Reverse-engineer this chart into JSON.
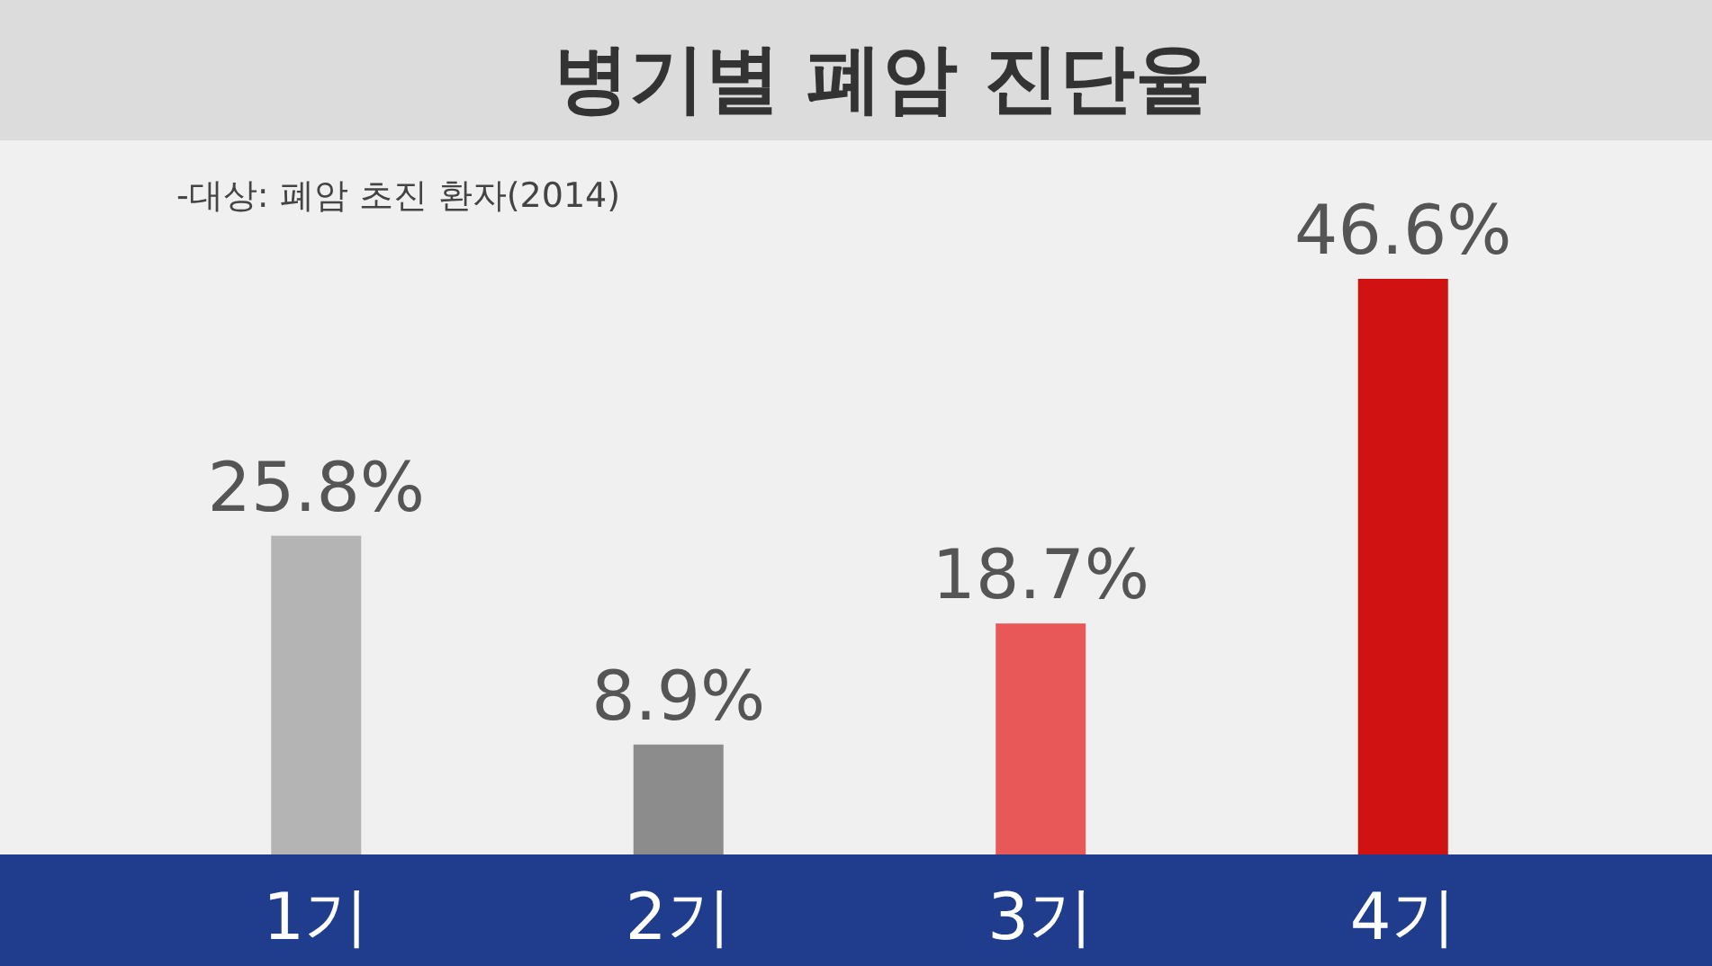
{
  "chart_data": {
    "type": "bar",
    "title": "병기별 폐암 진단율",
    "subtitle": "-대상: 폐암 초진 환자(2014)",
    "categories": [
      "1기",
      "2기",
      "3기",
      "4기"
    ],
    "values": [
      25.8,
      8.9,
      18.7,
      46.6
    ],
    "colors": [
      "#b4b4b4",
      "#8c8c8c",
      "#e85858",
      "#d01212"
    ],
    "value_labels": [
      "25.8%",
      "8.9%",
      "18.7%",
      "46.6%"
    ]
  }
}
